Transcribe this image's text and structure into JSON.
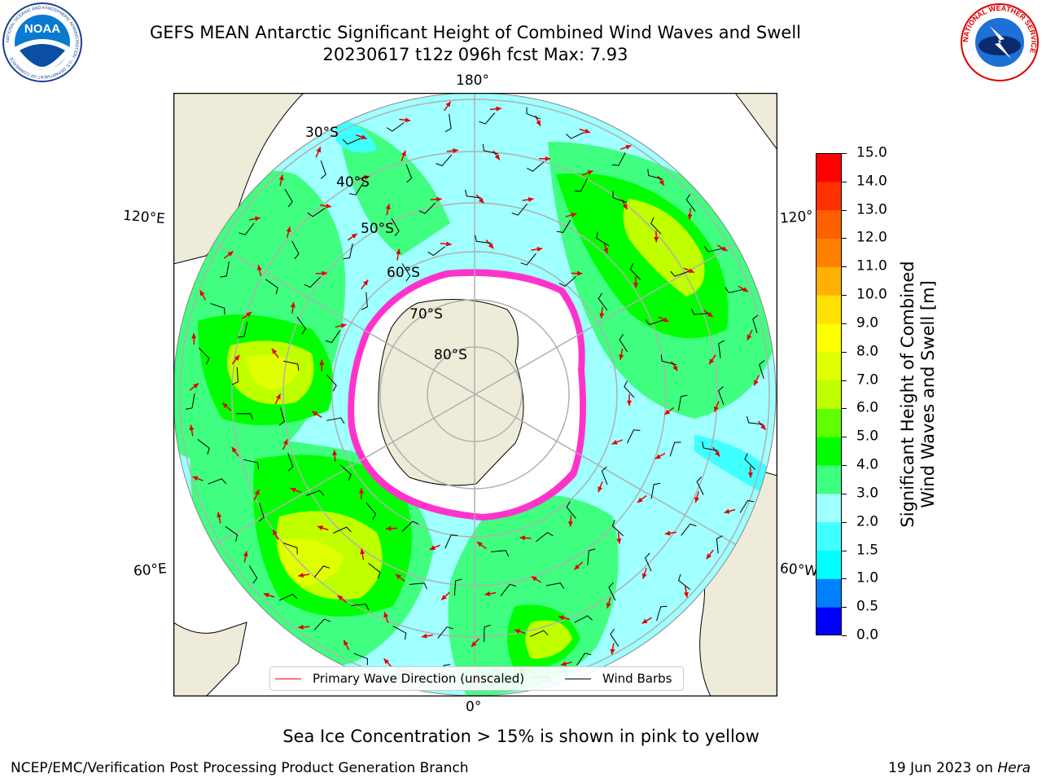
{
  "header": {
    "title_line1": "GEFS MEAN Antarctic Significant Height of Combined Wind Waves and Swell",
    "title_line2": "20230617 t12z 096h fcst   Max: 7.93"
  },
  "logos": {
    "noaa": {
      "text": "NOAA",
      "ring_text": "NATIONAL OCEANIC AND ATMOSPHERIC ADMINISTRATION · U.S. DEPARTMENT OF COMMERCE"
    },
    "nws": {
      "ring_text": "NATIONAL WEATHER SERVICE"
    }
  },
  "map": {
    "projection": "south-polar-stereographic",
    "longitude_labels": {
      "top": "180°",
      "bottom": "0°",
      "left_upper": "120°E",
      "left_lower": "60°E",
      "right_upper": "120°",
      "right_lower": "60°W"
    },
    "latitude_labels": [
      "30°S",
      "40°S",
      "50°S",
      "60°S",
      "70°S",
      "80°S"
    ],
    "colors": {
      "land": "#efebd9",
      "ice": "#ffffff",
      "ice_edge": "#ff33cc",
      "wave_arrow": "#ff0000",
      "wind_barb": "#000000",
      "gridline": "#b0b0b0"
    }
  },
  "colorbar": {
    "label_line1": "Significant Height of Combined",
    "label_line2": "Wind Waves and Swell [m]",
    "ticks": [
      "15.0",
      "14.0",
      "13.0",
      "12.0",
      "11.0",
      "10.0",
      "9.0",
      "8.0",
      "7.0",
      "6.0",
      "5.0",
      "4.0",
      "3.0",
      "2.0",
      "1.5",
      "1.0",
      "0.5",
      "0.0"
    ],
    "bands": [
      {
        "from": 0.0,
        "to": 0.5,
        "color": "#0000ff"
      },
      {
        "from": 0.5,
        "to": 1.0,
        "color": "#0080ff"
      },
      {
        "from": 1.0,
        "to": 1.5,
        "color": "#00ffff"
      },
      {
        "from": 1.5,
        "to": 2.0,
        "color": "#40ffff"
      },
      {
        "from": 2.0,
        "to": 3.0,
        "color": "#a0ffff"
      },
      {
        "from": 3.0,
        "to": 4.0,
        "color": "#40ff80"
      },
      {
        "from": 4.0,
        "to": 5.0,
        "color": "#00ff00"
      },
      {
        "from": 5.0,
        "to": 6.0,
        "color": "#60ff00"
      },
      {
        "from": 6.0,
        "to": 7.0,
        "color": "#c0ff00"
      },
      {
        "from": 7.0,
        "to": 8.0,
        "color": "#e0ff00"
      },
      {
        "from": 8.0,
        "to": 9.0,
        "color": "#ffff00"
      },
      {
        "from": 9.0,
        "to": 10.0,
        "color": "#ffe000"
      },
      {
        "from": 10.0,
        "to": 11.0,
        "color": "#ffb000"
      },
      {
        "from": 11.0,
        "to": 12.0,
        "color": "#ff8000"
      },
      {
        "from": 12.0,
        "to": 13.0,
        "color": "#ff6000"
      },
      {
        "from": 13.0,
        "to": 14.0,
        "color": "#ff3000"
      },
      {
        "from": 14.0,
        "to": 15.0,
        "color": "#ff0000"
      }
    ]
  },
  "legend": {
    "wave_label": "Primary Wave Direction (unscaled)",
    "barb_label": "Wind Barbs"
  },
  "caption": "Sea Ice Concentration > 15% is shown in pink to yellow",
  "footer": {
    "left": "NCEP/EMC/Verification Post Processing Product Generation Branch",
    "right_date": "19 Jun 2023 on ",
    "right_host": "Hera"
  }
}
